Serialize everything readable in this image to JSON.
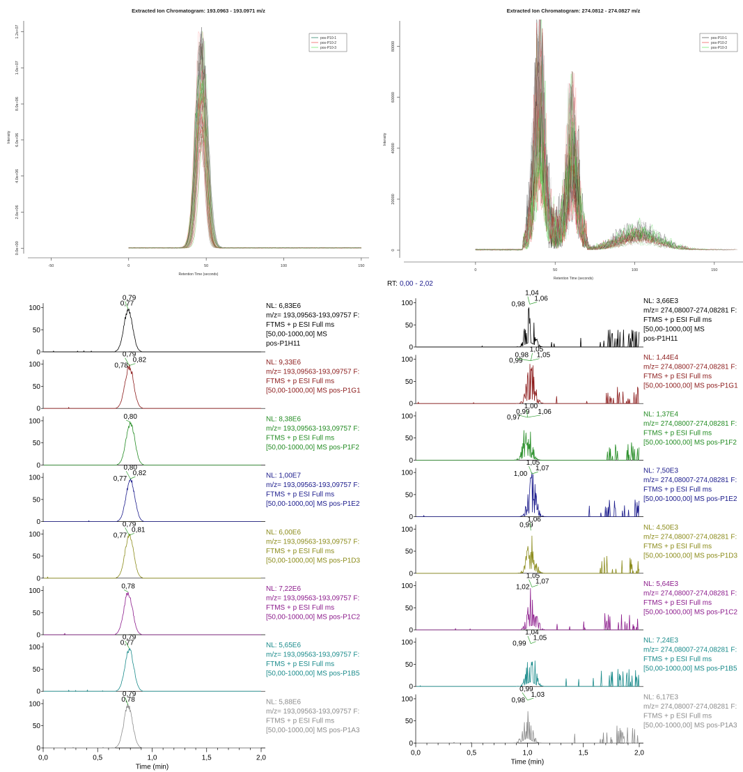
{
  "chart_data": [
    {
      "type": "line",
      "id": "eic1",
      "title": "Extracted Ion Chromatogram: 193.0963 - 193.0971 m/z",
      "xlabel": "Retention Time (seconds)",
      "ylabel": "Intensity",
      "xlim": [
        -65,
        155
      ],
      "ylim": [
        -300000,
        12600000
      ],
      "xticks": [
        -50,
        0,
        50,
        100,
        150
      ],
      "yticks": [
        0,
        2000000,
        4000000,
        6000000,
        8000000,
        10000000,
        12000000
      ],
      "ytick_labels": [
        "0.0e+00",
        "2.0e+06",
        "4.0e+06",
        "6.0e+06",
        "8.0e+06",
        "1.0e+07",
        "1.2e+07"
      ],
      "grid": false,
      "legend": "top-right",
      "series": [
        {
          "name": "pos-P10-1",
          "color": "#5a9e8a"
        },
        {
          "name": "pos-P10-2",
          "color": "#f08080"
        },
        {
          "name": "pos-P10-3",
          "color": "#90ee90"
        }
      ],
      "peak": {
        "rt": 47,
        "sigma": 3,
        "max": 11900000,
        "baseline_to": 150
      }
    },
    {
      "type": "line",
      "id": "eic2",
      "title": "Extracted Ion Chromatogram: 274.0812 - 274.0827 m/z",
      "xlabel": "Retention Time (seconds)",
      "ylabel": "Intensity",
      "xlim": [
        -45,
        168
      ],
      "ylim": [
        -3000,
        90000
      ],
      "xticks": [
        0,
        50,
        100,
        150
      ],
      "yticks": [
        0,
        20000,
        40000,
        60000,
        80000
      ],
      "ytick_labels": [
        "0",
        "20000",
        "40000",
        "60000",
        "80000"
      ],
      "grid": false,
      "legend": "top-right",
      "series": [
        {
          "name": "pos-P10-1",
          "color": "#808080"
        },
        {
          "name": "pos-P10-2",
          "color": "#f08080"
        },
        {
          "name": "pos-P10-3",
          "color": "#90ee90"
        }
      ],
      "peaks": [
        {
          "rt": 40,
          "sigma": 3,
          "max": 70000
        },
        {
          "rt": 61,
          "sigma": 3,
          "max": 50000
        },
        {
          "rt": 103,
          "sigma": 12,
          "max": 9000
        }
      ]
    },
    {
      "type": "line",
      "id": "xcal1",
      "xlabel": "Time (min)",
      "xlim": [
        0.0,
        2.0
      ],
      "xticks": [
        0.0,
        0.5,
        1.0,
        1.5,
        2.0
      ],
      "xtick_labels": [
        "0,0",
        "0,5",
        "1,0",
        "1,5",
        "2,0"
      ],
      "yticks": [
        0,
        50,
        100
      ],
      "ylim": [
        0,
        115
      ],
      "traces": [
        {
          "color": "#000000",
          "peak": 0.78,
          "labels": [
            "0,77",
            "0,79"
          ],
          "info": [
            "NL: 6,83E6",
            "m/z= 193,09563-193,09757 F:",
            "FTMS + p ESI Full ms",
            "[50,00-1000,00]  MS",
            "pos-P1H11"
          ]
        },
        {
          "color": "#8b1a1a",
          "peak": 0.79,
          "labels": [
            "0,78",
            "0,79",
            "0,82"
          ],
          "info": [
            "NL: 9,33E6",
            "m/z= 193,09563-193,09757 F:",
            "FTMS + p ESI Full ms",
            "[50,00-1000,00]  MS pos-P1G1"
          ]
        },
        {
          "color": "#228b22",
          "peak": 0.8,
          "labels": [
            "0,80"
          ],
          "info": [
            "NL: 8,38E6",
            "m/z= 193,09563-193,09757 F:",
            "FTMS + p ESI Full ms",
            "[50,00-1000,00]  MS pos-P1F2"
          ]
        },
        {
          "color": "#1a1a8b",
          "peak": 0.8,
          "labels": [
            "0,77",
            "0,80",
            "0,82"
          ],
          "info": [
            "NL: 1,00E7",
            "m/z= 193,09563-193,09757 F:",
            "FTMS + p ESI Full ms",
            "[50,00-1000,00]  MS pos-P1E2"
          ]
        },
        {
          "color": "#8b8b1a",
          "peak": 0.79,
          "labels": [
            "0,77",
            "0,79",
            "0,81"
          ],
          "info": [
            "NL: 6,00E6",
            "m/z= 193,09563-193,09757 F:",
            "FTMS + p ESI Full ms",
            "[50,00-1000,00]  MS pos-P1D3"
          ]
        },
        {
          "color": "#8b1a8b",
          "peak": 0.78,
          "labels": [
            "0,78"
          ],
          "info": [
            "NL: 7,22E6",
            "m/z= 193,09563-193,09757 F:",
            "FTMS + p ESI Full ms",
            "[50,00-1000,00]  MS pos-P1C2"
          ]
        },
        {
          "color": "#1a8b8b",
          "peak": 0.79,
          "labels": [
            "0,77",
            "0,79"
          ],
          "info": [
            "NL: 5,65E6",
            "m/z= 193,09563-193,09757 F:",
            "FTMS + p ESI Full ms",
            "[50,00-1000,00]  MS pos-P1B5"
          ]
        },
        {
          "color": "#8c8c8c",
          "peak": 0.78,
          "labels": [
            "0,78",
            "0,79"
          ],
          "info": [
            "NL: 5,88E6",
            "m/z= 193,09563-193,09757 F:",
            "FTMS + p ESI Full ms",
            "[50,00-1000,00]  MS pos-P1A3"
          ]
        }
      ]
    },
    {
      "type": "line",
      "id": "xcal2",
      "rt_label": "RT:",
      "rt_range": "0,00 - 2,02",
      "xlabel": "Time (min)",
      "xlim": [
        0.0,
        2.0
      ],
      "xticks": [
        0.0,
        0.5,
        1.0,
        1.5,
        2.0
      ],
      "xtick_labels": [
        "0,0",
        "0,5",
        "1,0",
        "1,5",
        "2,0"
      ],
      "yticks": [
        0,
        50,
        100
      ],
      "ylim": [
        0,
        115
      ],
      "traces": [
        {
          "color": "#000000",
          "peak": 1.02,
          "labels": [
            "0,98",
            "1,04",
            "1,06"
          ],
          "info": [
            "NL: 3,66E3",
            "m/z= 274,08007-274,08281 F:",
            "FTMS + p ESI Full ms",
            "[50,00-1000,00]  MS",
            "pos-P1H11"
          ]
        },
        {
          "color": "#8b1a1a",
          "peak": 1.03,
          "labels": [
            "0,99",
            "0,98",
            "1,05",
            "1,05"
          ],
          "info": [
            "NL: 1,44E4",
            "m/z= 274,08007-274,08281 F:",
            "FTMS + p ESI Full ms",
            "[50,00-1000,00]  MS pos-P1G1"
          ]
        },
        {
          "color": "#228b22",
          "peak": 1.0,
          "labels": [
            "0,97",
            "0,99",
            "1,00",
            "1,06"
          ],
          "info": [
            "NL: 1,37E4",
            "m/z= 274,08007-274,08281 F:",
            "FTMS + p ESI Full ms",
            "[50,00-1000,00]  MS pos-P1F2"
          ]
        },
        {
          "color": "#1a1a8b",
          "peak": 1.04,
          "labels": [
            "1,00",
            "1,05",
            "1,07"
          ],
          "info": [
            "NL: 7,50E3",
            "m/z= 274,08007-274,08281 F:",
            "FTMS + p ESI Full ms",
            "[50,00-1000,00]  MS pos-P1E2"
          ]
        },
        {
          "color": "#8b8b1a",
          "peak": 1.03,
          "labels": [
            "0,99",
            "1,06"
          ],
          "info": [
            "NL: 4,50E3",
            "m/z= 274,08007-274,08281 F:",
            "FTMS + p ESI Full ms",
            "[50,00-1000,00]  MS pos-P1D3"
          ]
        },
        {
          "color": "#8b1a8b",
          "peak": 1.04,
          "labels": [
            "1,02",
            "1,05",
            "1,07"
          ],
          "info": [
            "NL: 5,64E3",
            "m/z= 274,08007-274,08281 F:",
            "FTMS + p ESI Full ms",
            "[50,00-1000,00]  MS pos-P1C2"
          ]
        },
        {
          "color": "#1a8b8b",
          "peak": 1.03,
          "labels": [
            "0,99",
            "1,04",
            "1,05"
          ],
          "info": [
            "NL: 7,24E3",
            "m/z= 274,08007-274,08281 F:",
            "FTMS + p ESI Full ms",
            "[50,00-1000,00]  MS pos-P1B5"
          ]
        },
        {
          "color": "#8c8c8c",
          "peak": 1.0,
          "labels": [
            "0,98",
            "0,99",
            "1,03"
          ],
          "info": [
            "NL: 6,17E3",
            "m/z= 274,08007-274,08281 F:",
            "FTMS + p ESI Full ms",
            "[50,00-1000,00]  MS pos-P1A3"
          ]
        }
      ]
    }
  ]
}
